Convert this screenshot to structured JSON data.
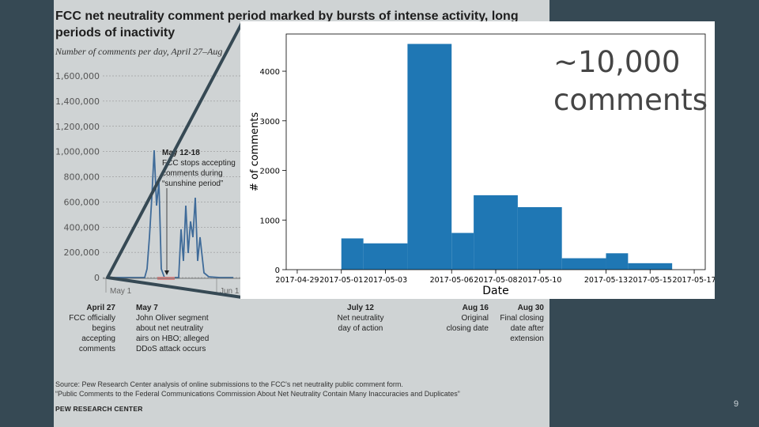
{
  "slide": {
    "page_number": "9"
  },
  "callout": {
    "line1": "~10,000",
    "line2": "comments"
  },
  "background_figure": {
    "title": "FCC net neutrality comment period marked by bursts of intense activity, long periods of inactivity",
    "subtitle": "Number of comments per day, April 27–Aug",
    "y_ticks": [
      "1,600,000",
      "1,400,000",
      "1,200,000",
      "1,000,000",
      "800,000",
      "600,000",
      "400,000",
      "200,000",
      "0"
    ],
    "x_labels": [
      "May 1",
      "Jun 1"
    ],
    "sunshine_annotation": {
      "title": "May 12-18",
      "lines": [
        "FCC stops accepting",
        "comments during",
        "“sunshine period”"
      ]
    },
    "events": [
      {
        "title": "April 27",
        "lines": [
          "FCC officially",
          "begins",
          "accepting",
          "comments"
        ]
      },
      {
        "title": "May 7",
        "lines": [
          "John Oliver segment",
          "about net neutrality",
          "airs on HBO; alleged",
          "DDoS attack occurs"
        ]
      },
      {
        "title": "July 12",
        "lines": [
          "Net neutrality",
          "day of action"
        ]
      },
      {
        "title": "Aug 16",
        "lines": [
          "Original",
          "closing date"
        ]
      },
      {
        "title": "Aug 30",
        "lines": [
          "Final closing",
          "date after",
          "extension"
        ]
      }
    ],
    "source_lines": [
      "Source: Pew Research Center analysis of online submissions to the FCC's net neutrality public comment form.",
      "“Public Comments to the Federal Communications Commission About Net Neutrality Contain Many Inaccuracies and Duplicates”"
    ],
    "brand": "PEW RESEARCH CENTER"
  },
  "chart_data": {
    "type": "bar",
    "xlabel": "Date",
    "ylabel": "# of comments",
    "ylim": [
      0,
      4750
    ],
    "yticks": [
      0,
      1000,
      2000,
      3000,
      4000
    ],
    "x_tick_labels": [
      "2017-04-29",
      "2017-05-01",
      "2017-05-03",
      "2017-05-06",
      "2017-05-08",
      "2017-05-10",
      "2017-05-13",
      "2017-05-15",
      "2017-05-17"
    ],
    "bars": [
      {
        "start": "2017-05-01",
        "end": "2017-05-02",
        "value": 630
      },
      {
        "start": "2017-05-02",
        "end": "2017-05-04",
        "value": 530
      },
      {
        "start": "2017-05-04",
        "end": "2017-05-06",
        "value": 4550
      },
      {
        "start": "2017-05-06",
        "end": "2017-05-07",
        "value": 740
      },
      {
        "start": "2017-05-07",
        "end": "2017-05-09",
        "value": 1500
      },
      {
        "start": "2017-05-09",
        "end": "2017-05-11",
        "value": 1260
      },
      {
        "start": "2017-05-11",
        "end": "2017-05-13",
        "value": 230
      },
      {
        "start": "2017-05-13",
        "end": "2017-05-14",
        "value": 330
      },
      {
        "start": "2017-05-14",
        "end": "2017-05-16",
        "value": 130
      }
    ],
    "bar_color": "#1f77b4"
  }
}
